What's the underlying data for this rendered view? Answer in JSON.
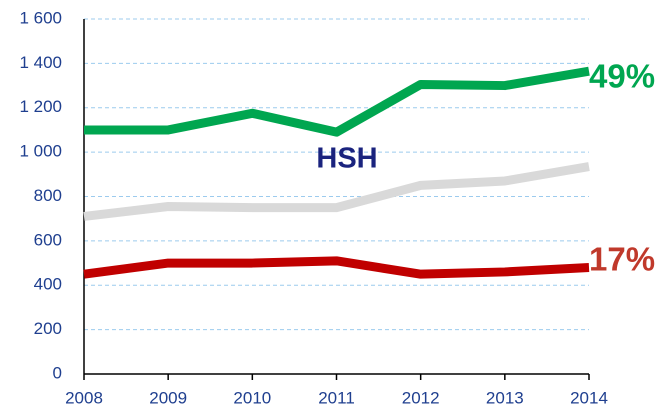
{
  "chart_data": {
    "type": "line",
    "x": [
      2008,
      2009,
      2010,
      2011,
      2012,
      2013,
      2014
    ],
    "xlim": [
      2008,
      2014
    ],
    "xticks": [
      2008,
      2009,
      2010,
      2011,
      2012,
      2013,
      2014
    ],
    "ylim": [
      0,
      1600
    ],
    "yticks": [
      0,
      200,
      400,
      600,
      800,
      {
        "value": 1000,
        "label": "1 000"
      },
      {
        "value": 1200,
        "label": "1 200"
      },
      {
        "value": 1400,
        "label": "1 400"
      },
      {
        "value": 1600,
        "label": "1 600"
      }
    ],
    "grid": true,
    "series": [
      {
        "color": "#00a650",
        "values": [
          1100,
          1100,
          1175,
          1090,
          1305,
          1300,
          1365
        ]
      },
      {
        "color": "#d9d9d9",
        "values": [
          710,
          755,
          750,
          750,
          850,
          870,
          935
        ]
      },
      {
        "color": "#c00000",
        "values": [
          450,
          500,
          500,
          510,
          450,
          460,
          480
        ]
      }
    ],
    "annotations": [
      {
        "text": "HSH",
        "color": "#1a237e"
      },
      {
        "text": "49%",
        "color": "#00a650"
      },
      {
        "text": "17%",
        "color": "#c0392b"
      }
    ]
  }
}
